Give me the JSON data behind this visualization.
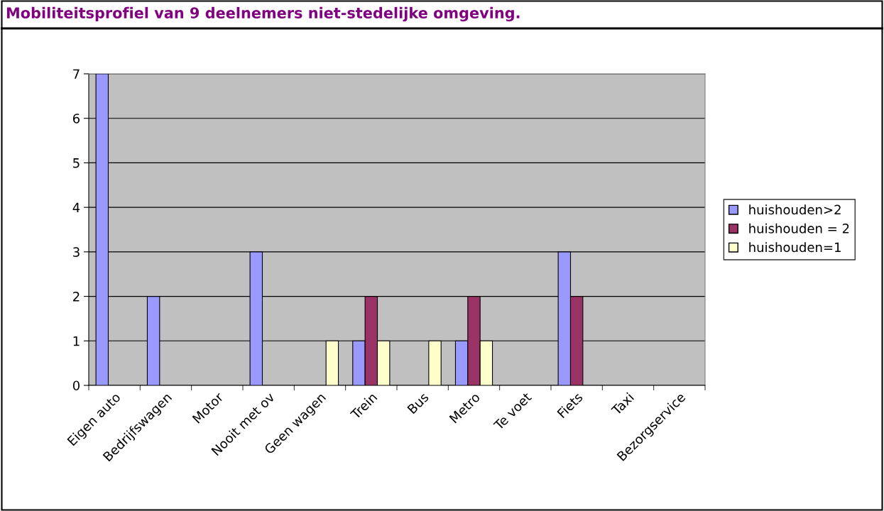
{
  "chart_data": {
    "type": "bar",
    "title": "Mobiliteitsprofiel van 9 deelnemers niet-stedelijke omgeving.",
    "categories": [
      "Eigen auto",
      "Bedrijfswagen",
      "Motor",
      "Nooit met ov",
      "Geen wagen",
      "Trein",
      "Bus",
      "Metro",
      "Te voet",
      "Fiets",
      "Taxi",
      "Bezorgservice"
    ],
    "series": [
      {
        "name": "huishouden>2",
        "color": "#9999ff",
        "values": [
          7,
          2,
          0,
          3,
          0,
          1,
          0,
          1,
          0,
          3,
          0,
          0
        ]
      },
      {
        "name": "huishouden = 2",
        "color": "#993366",
        "values": [
          0,
          0,
          0,
          0,
          0,
          2,
          0,
          2,
          0,
          2,
          0,
          0
        ]
      },
      {
        "name": "huishouden=1",
        "color": "#ffffcc",
        "values": [
          0,
          0,
          0,
          0,
          1,
          1,
          1,
          1,
          0,
          0,
          0,
          0
        ]
      }
    ],
    "ylim": [
      0,
      7
    ],
    "yticks": [
      0,
      1,
      2,
      3,
      4,
      5,
      6,
      7
    ],
    "grid": "y",
    "legend": "right"
  }
}
